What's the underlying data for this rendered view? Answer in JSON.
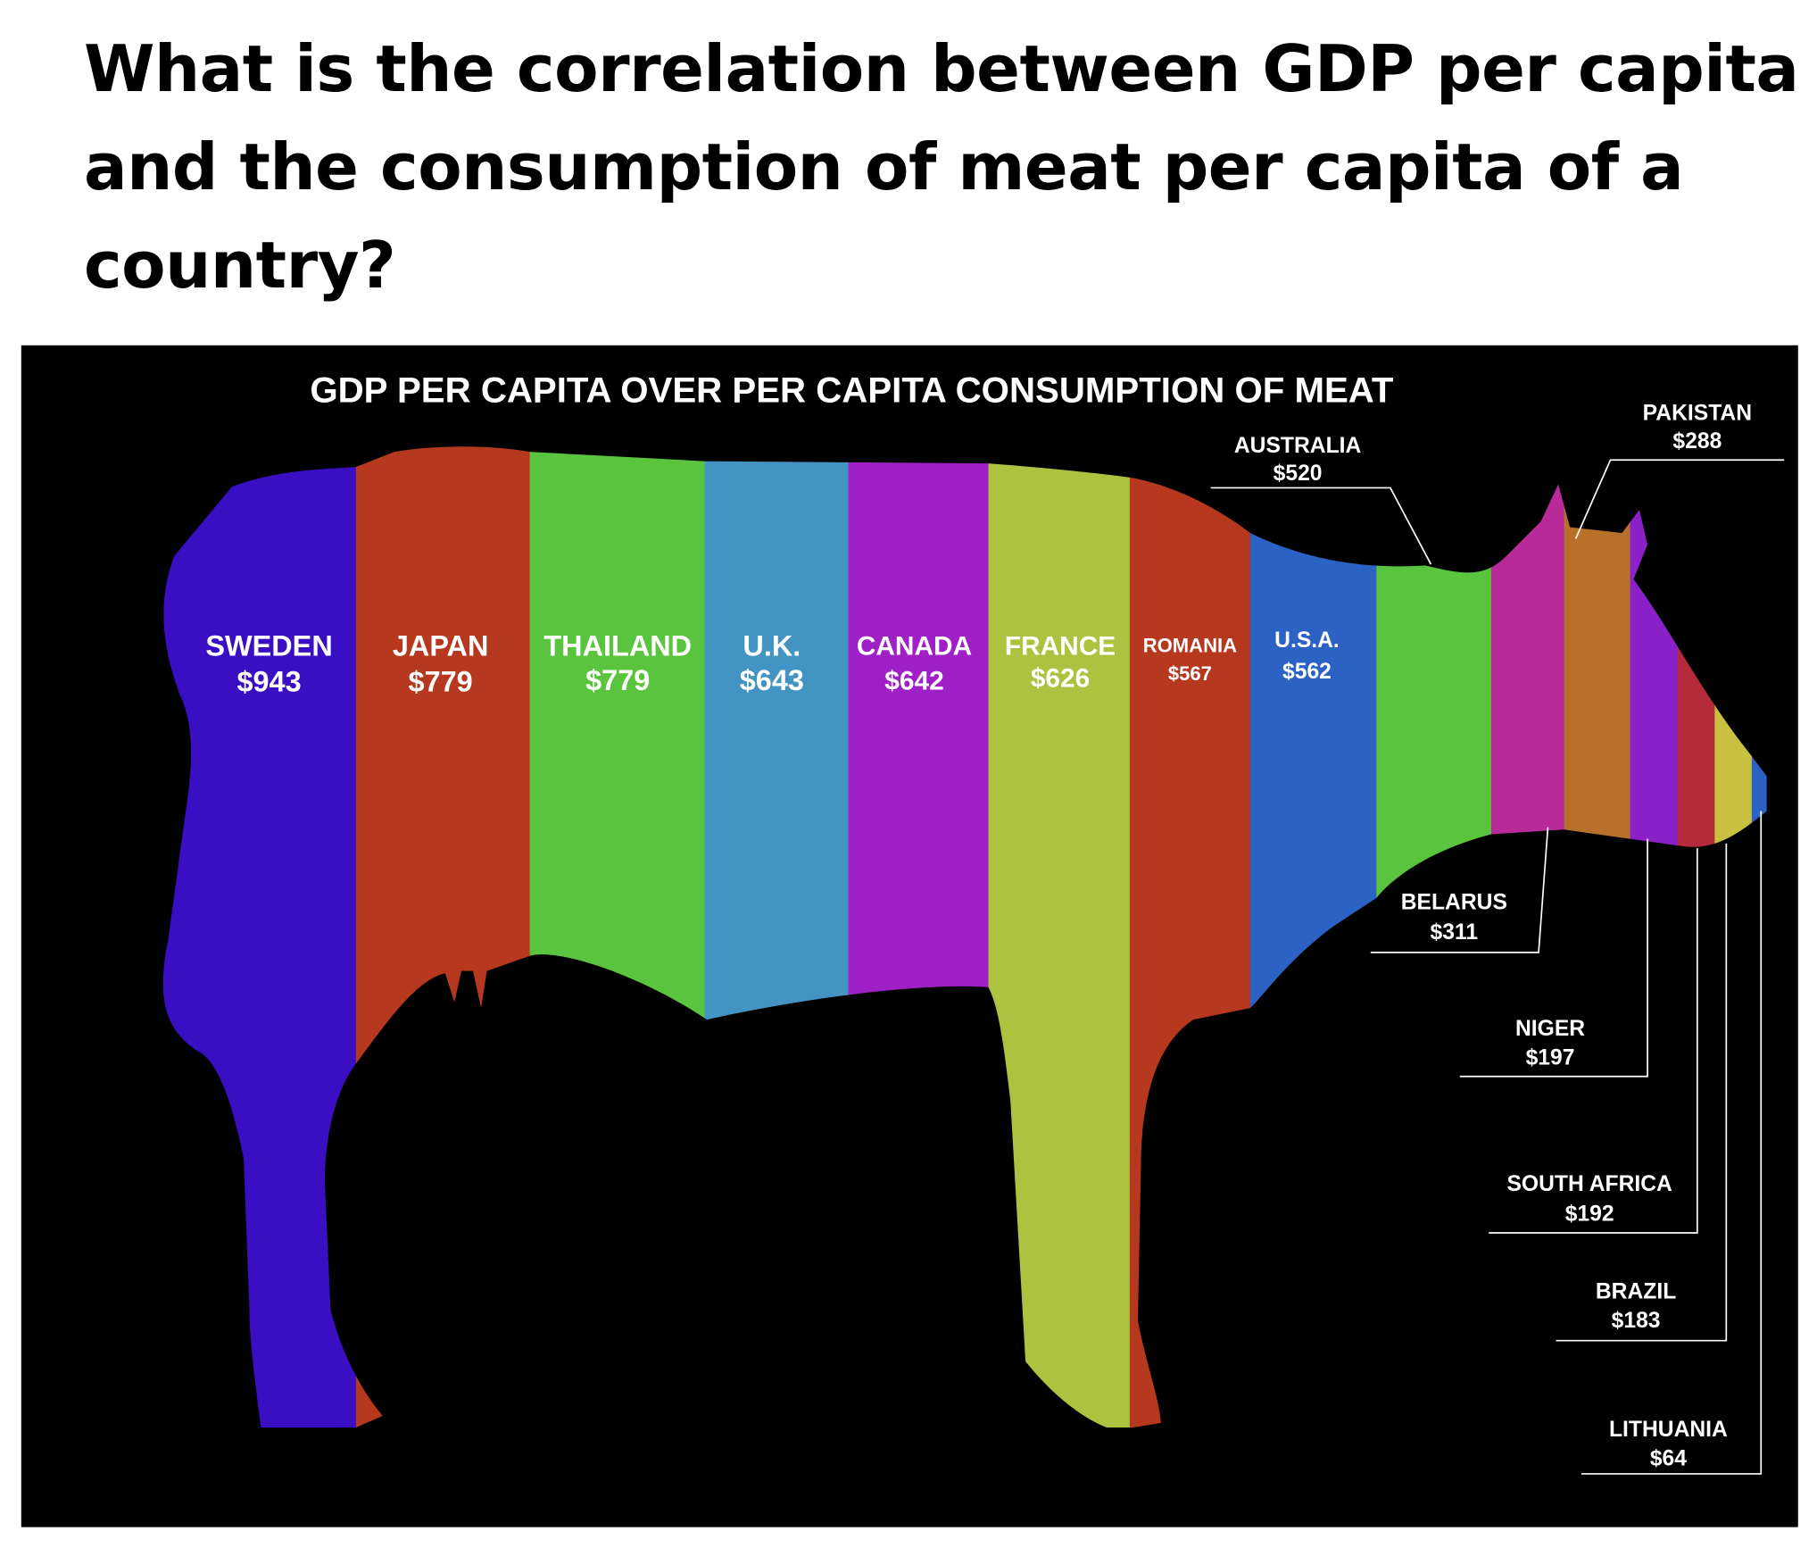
{
  "question": "What is the correlation between GDP per capita and the consumption of meat per capita of a country?",
  "infographic": {
    "title": "GDP PER CAPITA OVER PER CAPITA CONSUMPTION OF MEAT",
    "items": [
      {
        "name": "SWEDEN",
        "label": "$943",
        "color": "#3a0fc4"
      },
      {
        "name": "JAPAN",
        "label": "$779",
        "color": "#b5381f"
      },
      {
        "name": "THAILAND",
        "label": "$779",
        "color": "#5bc43e"
      },
      {
        "name": "U.K.",
        "label": "$643",
        "color": "#4393c3"
      },
      {
        "name": "CANADA",
        "label": "$642",
        "color": "#a020c8"
      },
      {
        "name": "FRANCE",
        "label": "$626",
        "color": "#adc23e"
      },
      {
        "name": "ROMANIA",
        "label": "$567",
        "color": "#b5381f"
      },
      {
        "name": "U.S.A.",
        "label": "$562",
        "color": "#2b62c4"
      },
      {
        "name": "AUSTRALIA",
        "label": "$520",
        "color": "#5bc43e"
      },
      {
        "name": "BELARUS",
        "label": "$311",
        "color": "#b82a9a"
      },
      {
        "name": "PAKISTAN",
        "label": "$288",
        "color": "#b8702a"
      },
      {
        "name": "NIGER",
        "label": "$197",
        "color": "#8a20c8"
      },
      {
        "name": "SOUTH AFRICA",
        "label": "$192",
        "color": "#b52a3a"
      },
      {
        "name": "BRAZIL",
        "label": "$183",
        "color": "#c8c040"
      },
      {
        "name": "LITHUANIA",
        "label": "$64",
        "color": "#2b62c4"
      }
    ]
  }
}
